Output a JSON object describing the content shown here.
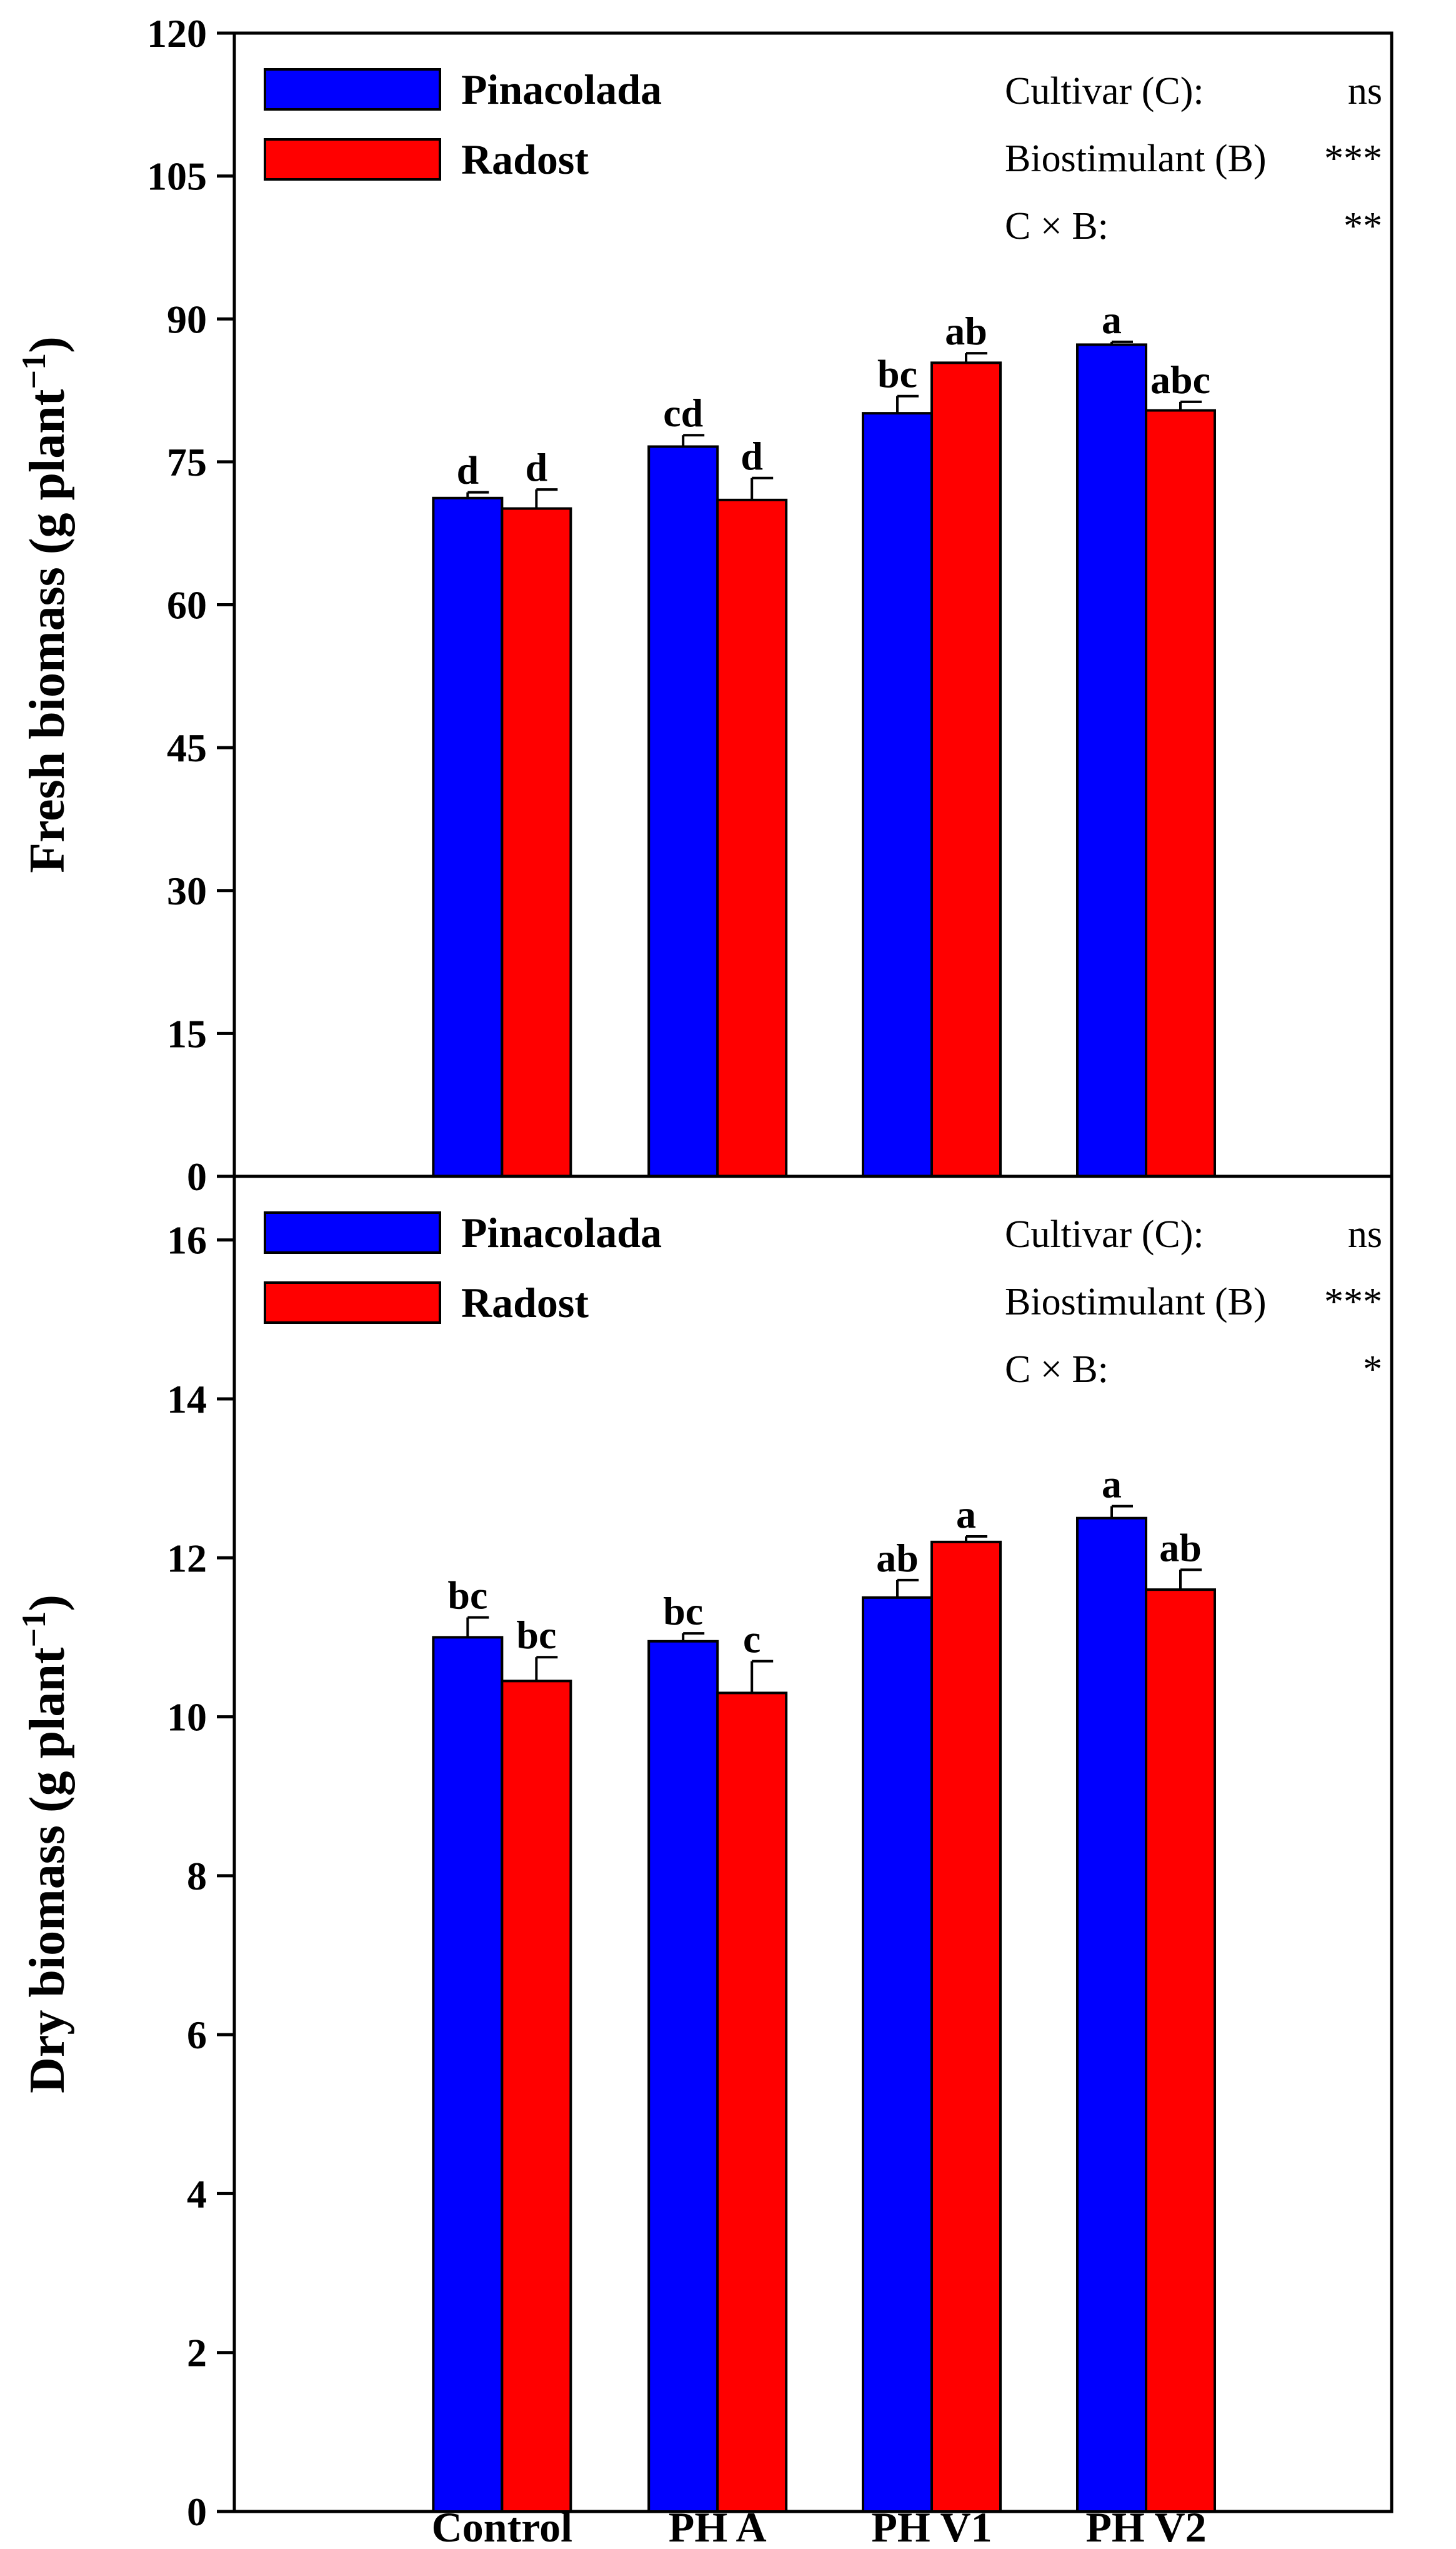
{
  "colors": {
    "pinacolada": "#0000ff",
    "radost": "#ff0000",
    "axis": "#000000"
  },
  "chart_data": [
    {
      "type": "bar",
      "categories": [
        "Control",
        "PH A",
        "PH V1",
        "PH V2"
      ],
      "ylabel": "Fresh biomass (g plant",
      "ylabel_sup": "−1",
      "ylabel_close": ")",
      "ylim": [
        0,
        120
      ],
      "yticks": [
        0,
        15,
        30,
        45,
        60,
        75,
        90,
        105,
        120
      ],
      "legend": {
        "position": "top-left",
        "entries": [
          "Pinacolada",
          "Radost"
        ]
      },
      "stats": [
        {
          "label": "Cultivar (C):",
          "value": "ns"
        },
        {
          "label": "Biostimulant (B)",
          "value": "***"
        },
        {
          "label": "C × B:",
          "value": "**"
        }
      ],
      "series": [
        {
          "name": "Pinacolada",
          "values": [
            71.2,
            76.6,
            80.1,
            87.3
          ],
          "errors": [
            0.6,
            1.2,
            1.8,
            0.3
          ],
          "letters": [
            "d",
            "cd",
            "bc",
            "a"
          ]
        },
        {
          "name": "Radost",
          "values": [
            70.1,
            71.0,
            85.4,
            80.4
          ],
          "errors": [
            2.0,
            2.3,
            1.0,
            0.9
          ],
          "letters": [
            "d",
            "d",
            "ab",
            "abc"
          ]
        }
      ]
    },
    {
      "type": "bar",
      "categories": [
        "Control",
        "PH A",
        "PH V1",
        "PH V2"
      ],
      "ylabel": "Dry biomass (g plant",
      "ylabel_sup": "−1",
      "ylabel_close": ")",
      "ylim": [
        0,
        16.8
      ],
      "yticks": [
        0,
        2,
        4,
        6,
        8,
        10,
        12,
        14,
        16
      ],
      "legend": {
        "position": "top-left",
        "entries": [
          "Pinacolada",
          "Radost"
        ]
      },
      "stats": [
        {
          "label": "Cultivar (C):",
          "value": "ns"
        },
        {
          "label": "Biostimulant (B)",
          "value": "***"
        },
        {
          "label": "C × B:",
          "value": "*"
        }
      ],
      "series": [
        {
          "name": "Pinacolada",
          "values": [
            11.0,
            10.95,
            11.5,
            12.5
          ],
          "errors": [
            0.25,
            0.1,
            0.22,
            0.15
          ],
          "letters": [
            "bc",
            "bc",
            "ab",
            "a"
          ]
        },
        {
          "name": "Radost",
          "values": [
            10.45,
            10.3,
            12.2,
            11.6
          ],
          "errors": [
            0.3,
            0.4,
            0.07,
            0.25
          ],
          "letters": [
            "bc",
            "c",
            "a",
            "ab"
          ]
        }
      ]
    }
  ]
}
